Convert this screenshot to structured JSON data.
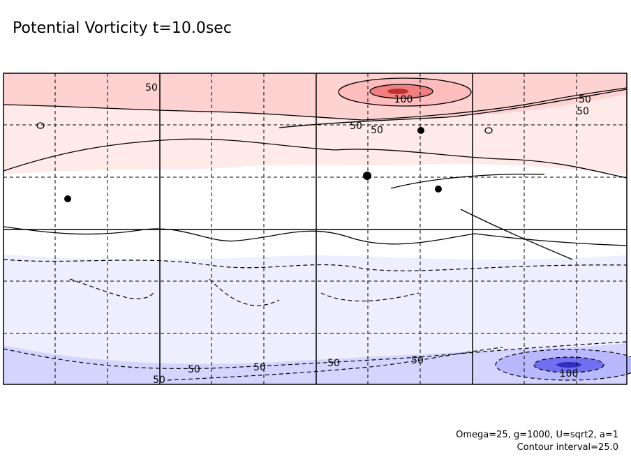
{
  "title": "Potential Vorticity t=10.0sec",
  "contour_labels": [
    "50",
    "100",
    "50",
    "50",
    "50",
    "50",
    "50",
    "50",
    "50",
    "50",
    "50",
    "100"
  ],
  "footnote": [
    "Omega=25, g=1000, U=sqrt2, a=1",
    "Contour interval=25.0"
  ]
}
